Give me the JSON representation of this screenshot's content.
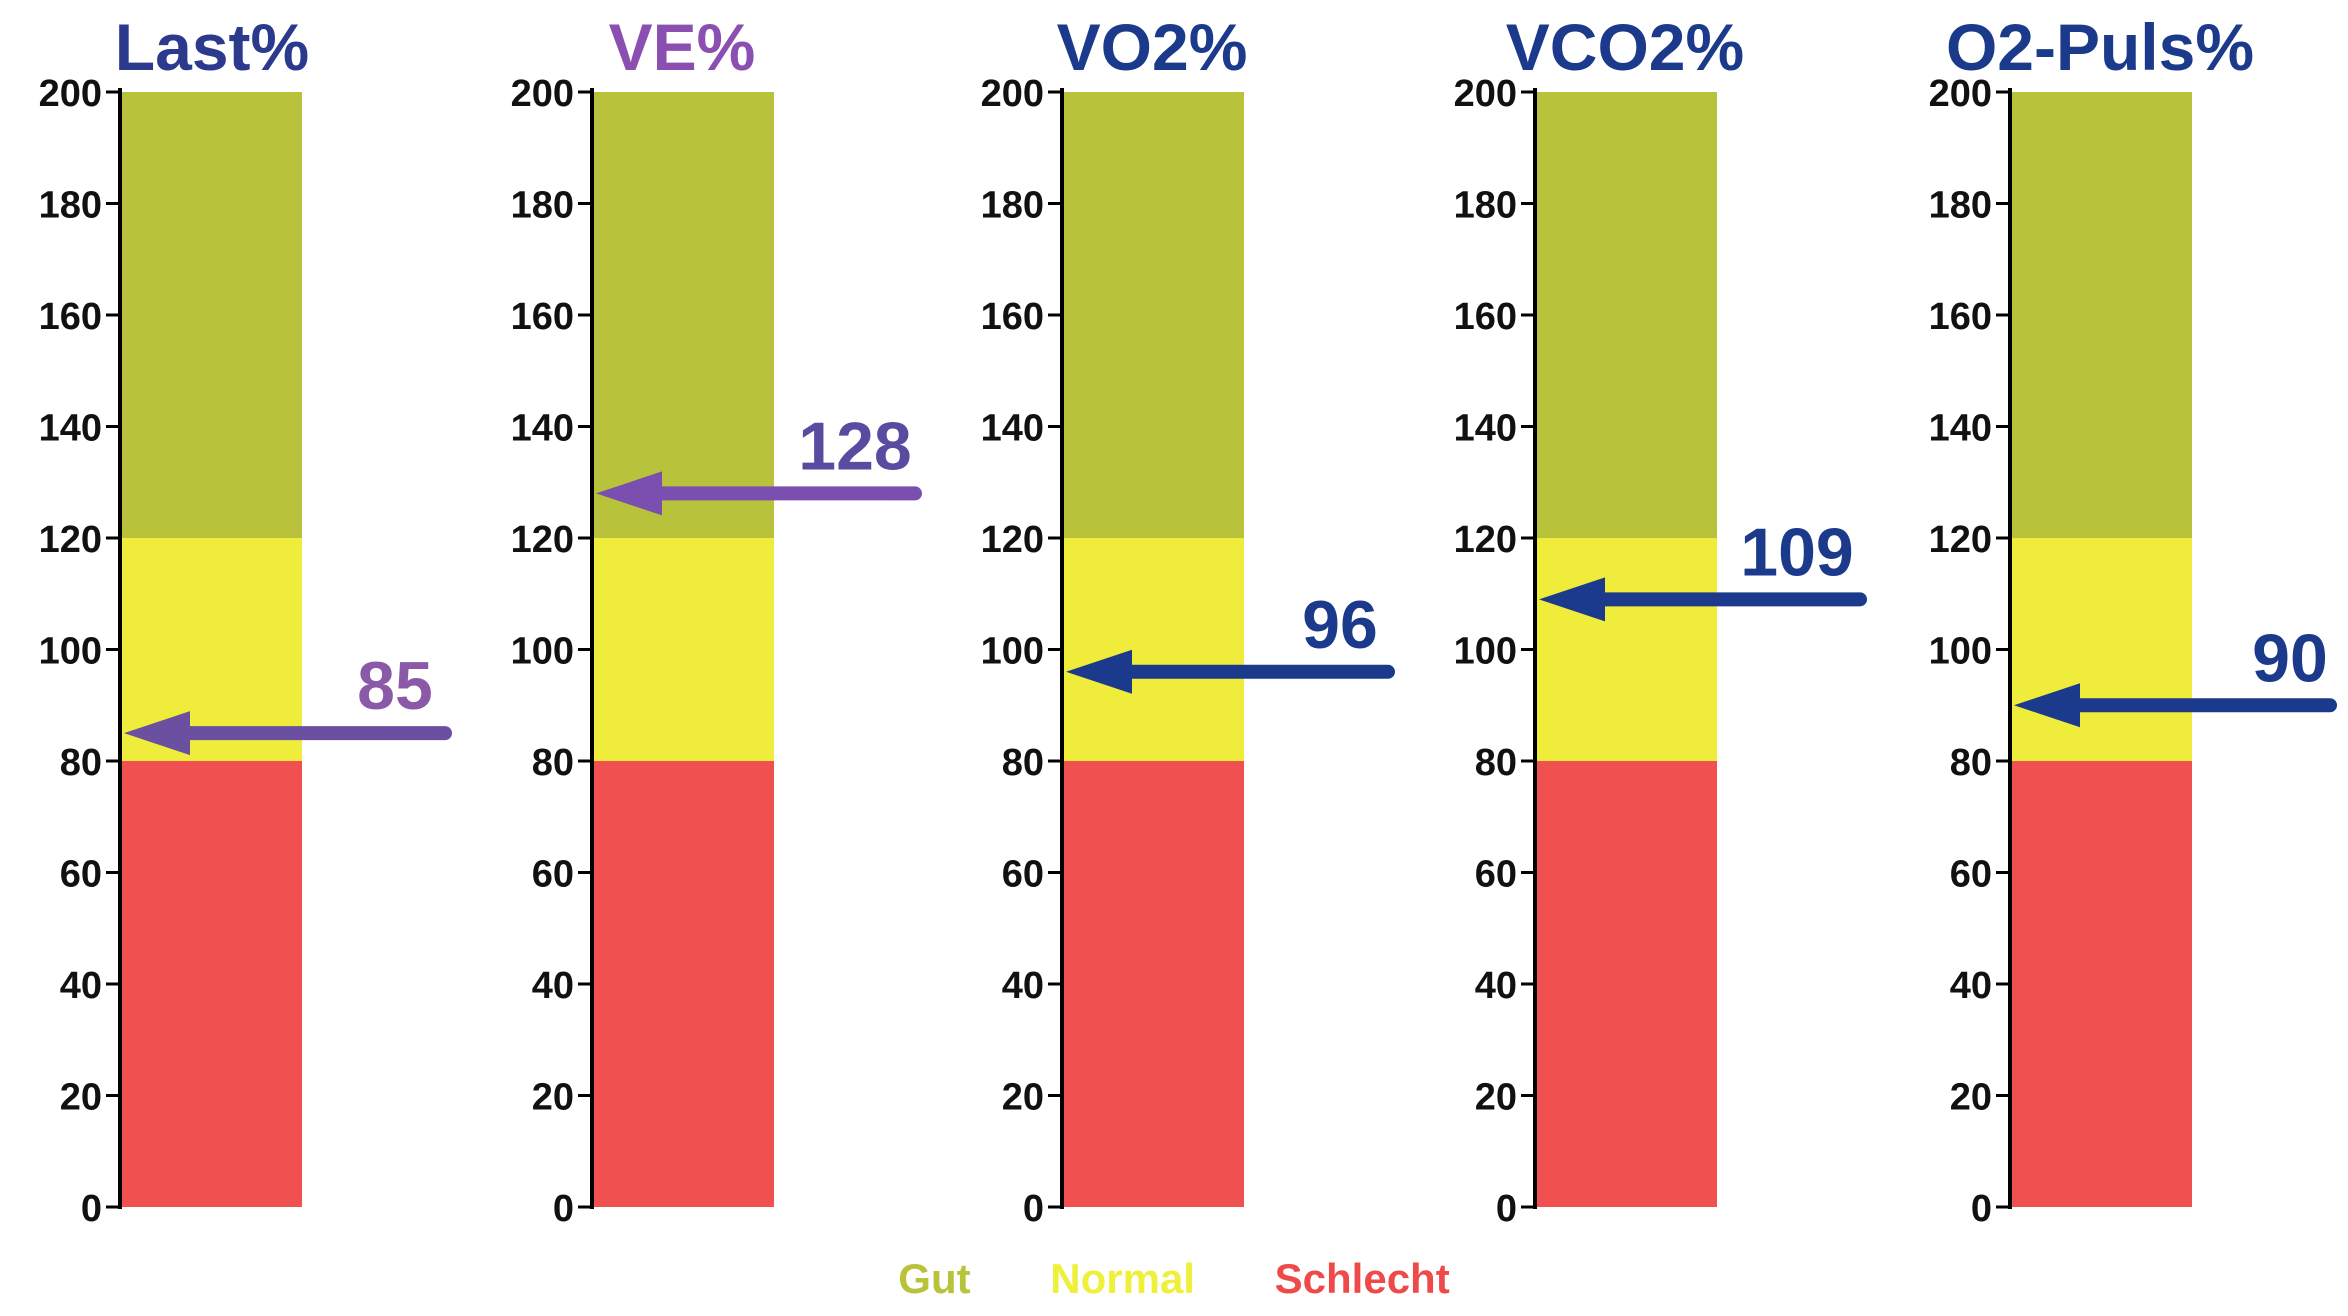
{
  "chart_data": {
    "type": "bar",
    "y_range": [
      0,
      200
    ],
    "y_ticks": [
      0,
      20,
      40,
      60,
      80,
      100,
      120,
      140,
      160,
      180,
      200
    ],
    "bands": [
      {
        "name": "Gut",
        "from": 120,
        "to": 200,
        "color": "#b9c23b"
      },
      {
        "name": "Normal",
        "from": 80,
        "to": 120,
        "color": "#f0ec3c"
      },
      {
        "name": "Schlecht",
        "from": 0,
        "to": 80,
        "color": "#f05050"
      }
    ],
    "panels": [
      {
        "title": "Last%",
        "value": 85,
        "title_color": "#2b3a8c",
        "value_color": "#8a5aa8",
        "arrow_color": "#6b4fa0"
      },
      {
        "title": "VE%",
        "value": 128,
        "title_color": "#8a4fb0",
        "value_color": "#5a4aa0",
        "arrow_color": "#7a4fb0"
      },
      {
        "title": "VO2%",
        "value": 96,
        "title_color": "#1c3a8c",
        "value_color": "#1c3a8c",
        "arrow_color": "#1c3a8c"
      },
      {
        "title": "VCO2%",
        "value": 109,
        "title_color": "#1c3a8c",
        "value_color": "#1c3a8c",
        "arrow_color": "#1c3a8c"
      },
      {
        "title": "O2-Puls%",
        "value": 90,
        "title_color": "#1c3a8c",
        "value_color": "#1c3a8c",
        "arrow_color": "#1c3a8c"
      }
    ],
    "legend": [
      {
        "label": "Gut",
        "color": "#b9c23b"
      },
      {
        "label": "Normal",
        "color": "#eef03a"
      },
      {
        "label": "Schlecht",
        "color": "#ee4a4a"
      }
    ]
  }
}
